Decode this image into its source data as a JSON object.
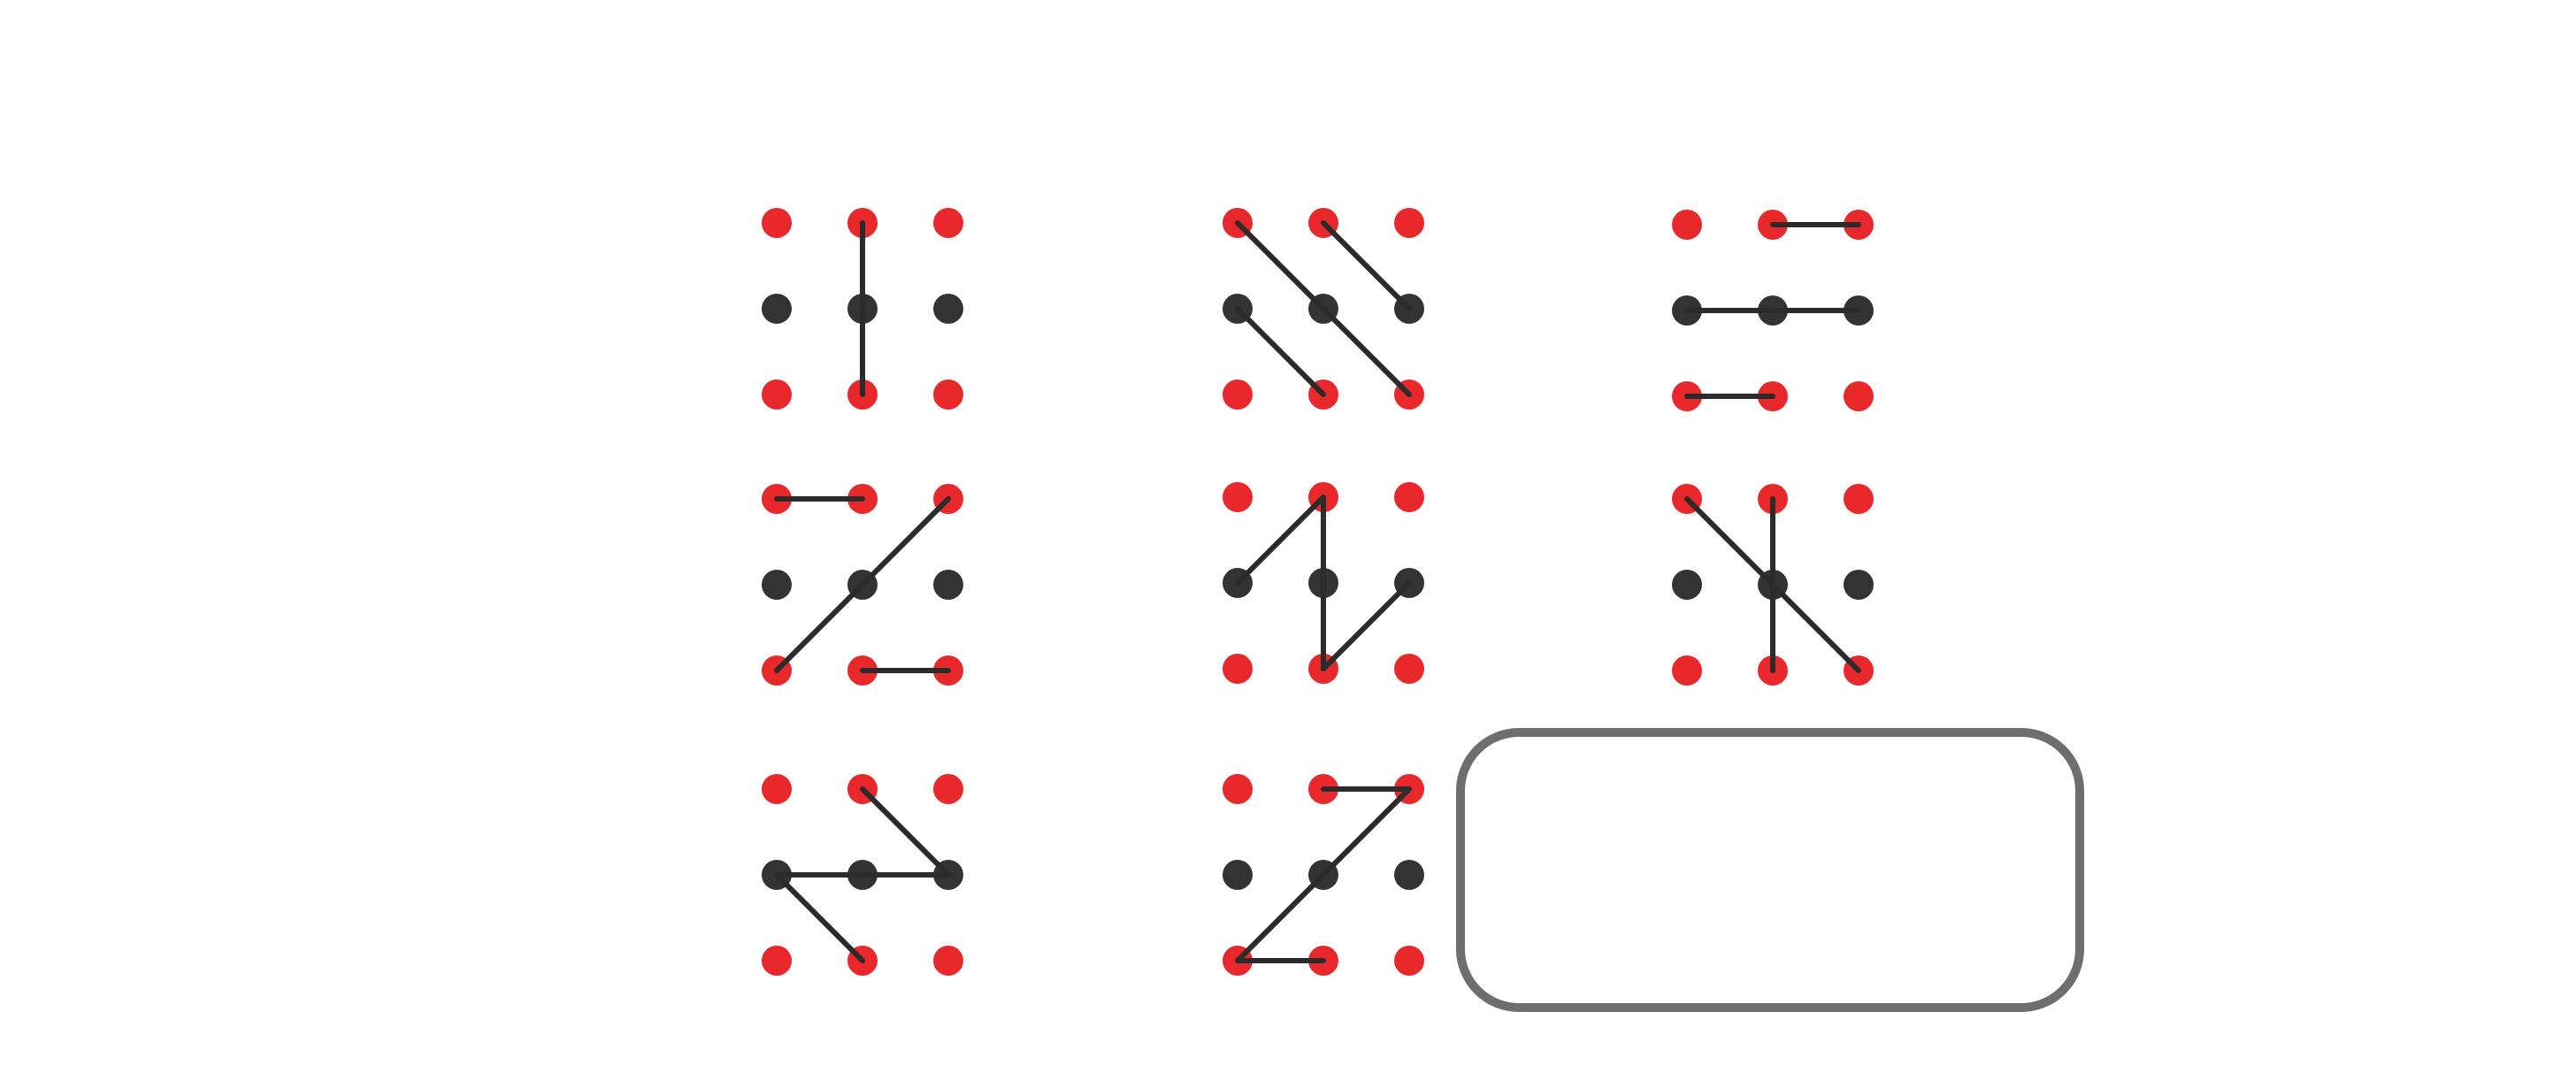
{
  "colors": {
    "red_dot": "#e8282a",
    "black_dot": "#333333",
    "line": "#2b2b2b",
    "answer_box_border": "#6e6e6e",
    "background": "#ffffff"
  },
  "grid": {
    "rows": 3,
    "cols": 3,
    "dot_grid": "3x3",
    "middle_row_dots": "black",
    "outer_row_dots": "red"
  },
  "puzzles": [
    {
      "id": "r1c1",
      "segments": [
        [
          [
            1,
            0
          ],
          [
            1,
            2
          ]
        ]
      ]
    },
    {
      "id": "r1c2",
      "segments": [
        [
          [
            0,
            0
          ],
          [
            2,
            2
          ]
        ],
        [
          [
            0,
            1
          ],
          [
            1,
            2
          ]
        ],
        [
          [
            1,
            0
          ],
          [
            2,
            1
          ]
        ]
      ]
    },
    {
      "id": "r1c3",
      "segments": [
        [
          [
            1,
            0
          ],
          [
            2,
            0
          ]
        ],
        [
          [
            0,
            1
          ],
          [
            2,
            1
          ]
        ],
        [
          [
            0,
            2
          ],
          [
            1,
            2
          ]
        ]
      ]
    },
    {
      "id": "r2c1",
      "segments": [
        [
          [
            0,
            0
          ],
          [
            1,
            0
          ]
        ],
        [
          [
            2,
            0
          ],
          [
            0,
            2
          ]
        ],
        [
          [
            1,
            2
          ],
          [
            2,
            2
          ]
        ]
      ]
    },
    {
      "id": "r2c2",
      "segments": [
        [
          [
            1,
            0
          ],
          [
            0,
            1
          ]
        ],
        [
          [
            1,
            0
          ],
          [
            1,
            2
          ]
        ],
        [
          [
            1,
            2
          ],
          [
            2,
            1
          ]
        ]
      ]
    },
    {
      "id": "r2c3",
      "segments": [
        [
          [
            0,
            0
          ],
          [
            2,
            2
          ]
        ],
        [
          [
            1,
            0
          ],
          [
            1,
            2
          ]
        ]
      ]
    },
    {
      "id": "r3c1",
      "segments": [
        [
          [
            1,
            0
          ],
          [
            2,
            1
          ]
        ],
        [
          [
            2,
            1
          ],
          [
            0,
            1
          ]
        ],
        [
          [
            0,
            1
          ],
          [
            1,
            2
          ]
        ]
      ]
    },
    {
      "id": "r3c2",
      "segments": [
        [
          [
            1,
            0
          ],
          [
            2,
            0
          ]
        ],
        [
          [
            2,
            0
          ],
          [
            0,
            2
          ]
        ],
        [
          [
            0,
            2
          ],
          [
            1,
            2
          ]
        ]
      ]
    }
  ],
  "answer_box": {
    "label": "",
    "state": "empty"
  }
}
